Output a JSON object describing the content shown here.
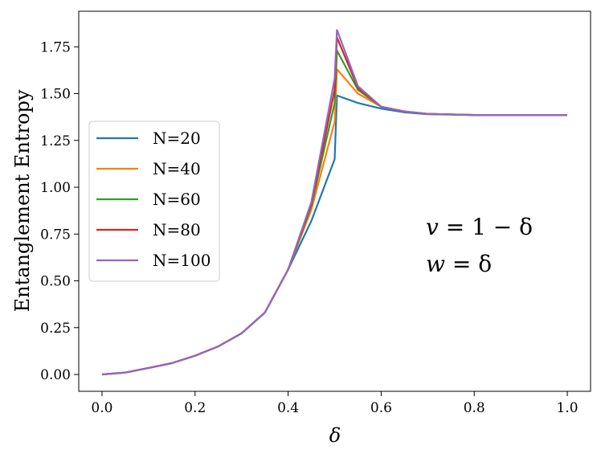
{
  "chart_data": {
    "type": "line",
    "title": "",
    "xlabel": "δ",
    "ylabel": "Entanglement Entropy",
    "xlim": [
      -0.05,
      1.05
    ],
    "ylim": [
      -0.09,
      1.94
    ],
    "x_ticks": [
      0.0,
      0.2,
      0.4,
      0.6,
      0.8,
      1.0
    ],
    "x_tick_labels": [
      "0.0",
      "0.2",
      "0.4",
      "0.6",
      "0.8",
      "1.0"
    ],
    "y_ticks": [
      0.0,
      0.25,
      0.5,
      0.75,
      1.0,
      1.25,
      1.5,
      1.75
    ],
    "y_tick_labels": [
      "0.00",
      "0.25",
      "0.50",
      "0.75",
      "1.00",
      "1.25",
      "1.50",
      "1.75"
    ],
    "grid": false,
    "legend_position": "center-left",
    "annotations": [
      {
        "var": "v",
        "expr": " = 1 − δ"
      },
      {
        "var": "w",
        "expr": " = δ"
      }
    ],
    "series": [
      {
        "name": "N=20",
        "color": "#1f77b4",
        "x": [
          0.0,
          0.05,
          0.1,
          0.15,
          0.2,
          0.25,
          0.3,
          0.35,
          0.4,
          0.45,
          0.5,
          0.505,
          0.55,
          0.6,
          0.65,
          0.7,
          0.8,
          0.9,
          1.0
        ],
        "y": [
          0.0,
          0.01,
          0.035,
          0.06,
          0.1,
          0.15,
          0.22,
          0.33,
          0.56,
          0.82,
          1.15,
          1.49,
          1.45,
          1.42,
          1.4,
          1.39,
          1.386,
          1.386,
          1.386
        ]
      },
      {
        "name": "N=40",
        "color": "#ff7f0e",
        "x": [
          0.0,
          0.05,
          0.1,
          0.15,
          0.2,
          0.25,
          0.3,
          0.35,
          0.4,
          0.45,
          0.5,
          0.505,
          0.55,
          0.6,
          0.65,
          0.7,
          0.8,
          0.9,
          1.0
        ],
        "y": [
          0.0,
          0.01,
          0.035,
          0.06,
          0.1,
          0.15,
          0.22,
          0.33,
          0.56,
          0.88,
          1.35,
          1.63,
          1.5,
          1.43,
          1.405,
          1.392,
          1.386,
          1.386,
          1.386
        ]
      },
      {
        "name": "N=60",
        "color": "#2ca02c",
        "x": [
          0.0,
          0.05,
          0.1,
          0.15,
          0.2,
          0.25,
          0.3,
          0.35,
          0.4,
          0.45,
          0.5,
          0.505,
          0.55,
          0.6,
          0.65,
          0.7,
          0.8,
          0.9,
          1.0
        ],
        "y": [
          0.0,
          0.01,
          0.035,
          0.06,
          0.1,
          0.15,
          0.22,
          0.33,
          0.56,
          0.9,
          1.45,
          1.73,
          1.52,
          1.43,
          1.405,
          1.392,
          1.386,
          1.386,
          1.386
        ]
      },
      {
        "name": "N=80",
        "color": "#d62728",
        "x": [
          0.0,
          0.05,
          0.1,
          0.15,
          0.2,
          0.25,
          0.3,
          0.35,
          0.4,
          0.45,
          0.5,
          0.505,
          0.55,
          0.6,
          0.65,
          0.7,
          0.8,
          0.9,
          1.0
        ],
        "y": [
          0.0,
          0.01,
          0.035,
          0.06,
          0.1,
          0.15,
          0.22,
          0.33,
          0.56,
          0.91,
          1.52,
          1.8,
          1.53,
          1.43,
          1.405,
          1.392,
          1.386,
          1.386,
          1.386
        ]
      },
      {
        "name": "N=100",
        "color": "#9467bd",
        "x": [
          0.0,
          0.05,
          0.1,
          0.15,
          0.2,
          0.25,
          0.3,
          0.35,
          0.4,
          0.45,
          0.5,
          0.505,
          0.55,
          0.6,
          0.65,
          0.7,
          0.8,
          0.9,
          1.0
        ],
        "y": [
          0.0,
          0.01,
          0.035,
          0.06,
          0.1,
          0.15,
          0.22,
          0.33,
          0.56,
          0.92,
          1.58,
          1.84,
          1.54,
          1.43,
          1.405,
          1.392,
          1.386,
          1.386,
          1.386
        ]
      }
    ]
  }
}
